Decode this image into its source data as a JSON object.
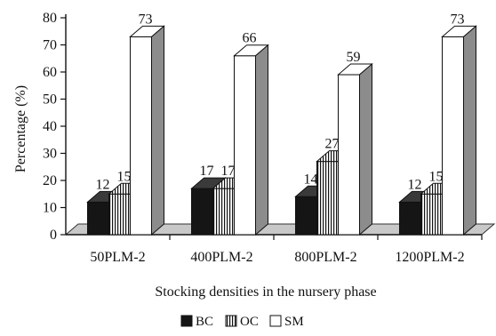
{
  "chart_data": {
    "type": "bar",
    "title": "",
    "xlabel": "Stocking densities in the nursery phase",
    "ylabel": "Percentage  (%)",
    "ylim": [
      0,
      80
    ],
    "yticks": [
      0,
      10,
      20,
      30,
      40,
      50,
      60,
      70,
      80
    ],
    "categories": [
      "50PLM-2",
      "400PLM-2",
      "800PLM-2",
      "1200PLM-2"
    ],
    "series": [
      {
        "name": "BC",
        "values": [
          12,
          17,
          14,
          12
        ],
        "pattern": "solid-black"
      },
      {
        "name": "OC",
        "values": [
          15,
          17,
          27,
          15
        ],
        "pattern": "vertical-stripes"
      },
      {
        "name": "SM",
        "values": [
          73,
          66,
          59,
          73
        ],
        "pattern": "white"
      }
    ],
    "data_labels": true,
    "legend_position": "bottom",
    "grid": false,
    "style": "3d-bars"
  }
}
